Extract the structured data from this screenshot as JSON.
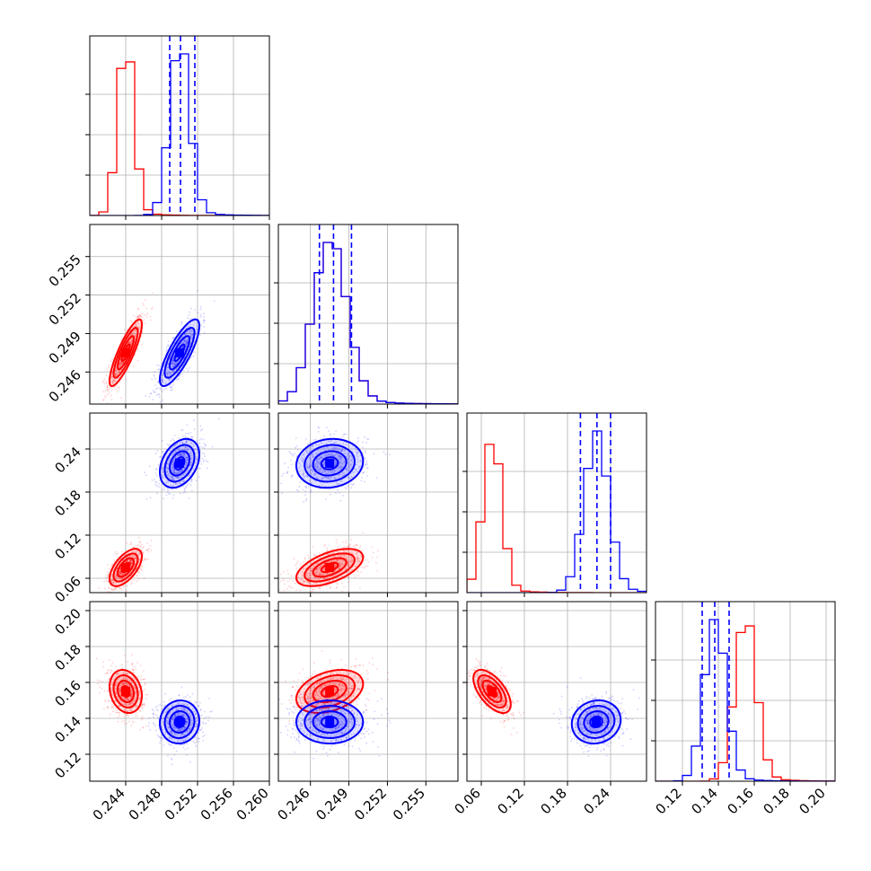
{
  "colors": {
    "series_a": "#ff0000",
    "series_b": "#0000ff",
    "grid": "#b0b0b0"
  },
  "chart_data": {
    "type": "corner",
    "grid": true,
    "params": [
      {
        "range": [
          0.24,
          0.26
        ],
        "ticks": [
          0.244,
          0.248,
          0.252,
          0.256,
          0.26
        ],
        "tick_labels": [
          "0.244",
          "0.248",
          "0.252",
          "0.256",
          "0.260"
        ]
      },
      {
        "range": [
          0.2435,
          0.2575
        ],
        "ticks": [
          0.246,
          0.249,
          0.252,
          0.255
        ],
        "tick_labels": [
          "0.246",
          "0.249",
          "0.252",
          "0.255"
        ]
      },
      {
        "range": [
          0.04,
          0.29
        ],
        "ticks": [
          0.06,
          0.12,
          0.18,
          0.24
        ],
        "tick_labels": [
          "0.06",
          "0.12",
          "0.18",
          "0.24"
        ]
      },
      {
        "range": [
          0.105,
          0.205
        ],
        "ticks": [
          0.12,
          0.14,
          0.16,
          0.18,
          0.2
        ],
        "tick_labels": [
          "0.12",
          "0.14",
          "0.16",
          "0.18",
          "0.20"
        ]
      }
    ],
    "series": [
      {
        "color": "#ff0000",
        "means": [
          0.244,
          0.2475,
          0.075,
          0.155
        ],
        "sigmas": [
          0.0009,
          0.0013,
          0.013,
          0.006
        ],
        "correlations": {
          "1-0": 0.85,
          "2-0": 0.6,
          "2-1": 0.55,
          "3-0": -0.2,
          "3-1": 0.35,
          "3-2": -0.6
        }
      },
      {
        "color": "#0000ff",
        "means": [
          0.25,
          0.2475,
          0.22,
          0.138
        ],
        "sigmas": [
          0.0011,
          0.0013,
          0.017,
          0.006
        ],
        "correlations": {
          "1-0": 0.8,
          "2-0": 0.35,
          "2-1": 0.1,
          "3-0": 0.05,
          "3-1": 0.0,
          "3-2": 0.1
        },
        "quantiles": [
          [
            0.2489,
            0.2501,
            0.2517
          ],
          [
            0.2467,
            0.2478,
            0.2492
          ],
          [
            0.198,
            0.221,
            0.24
          ],
          [
            0.131,
            0.138,
            0.146
          ]
        ]
      }
    ]
  }
}
